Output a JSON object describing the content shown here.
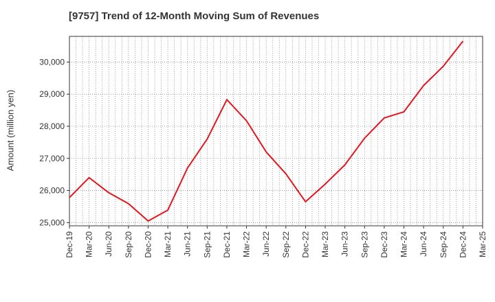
{
  "title": "[9757]  Trend of 12-Month Moving Sum of Revenues",
  "chart_data": {
    "type": "line",
    "title": "[9757]  Trend of 12-Month Moving Sum of Revenues",
    "xlabel": "",
    "ylabel": "Amount (million yen)",
    "ylim": [
      24900,
      30800
    ],
    "y_ticks": [
      25000,
      26000,
      27000,
      28000,
      29000,
      30000
    ],
    "y_tick_labels": [
      "25,000",
      "26,000",
      "27,000",
      "28,000",
      "29,000",
      "30,000"
    ],
    "categories": [
      "Dec-19",
      "Mar-20",
      "Jun-20",
      "Sep-20",
      "Dec-20",
      "Mar-21",
      "Jun-21",
      "Sep-21",
      "Dec-21",
      "Mar-22",
      "Jun-22",
      "Sep-22",
      "Dec-22",
      "Mar-23",
      "Jun-23",
      "Sep-23",
      "Dec-23",
      "Mar-24",
      "Jun-24",
      "Sep-24",
      "Dec-24",
      "Mar-25"
    ],
    "grid": true,
    "series": [
      {
        "name": "",
        "color": "#e8141c",
        "values": [
          25780,
          26400,
          25930,
          25590,
          25050,
          25390,
          26700,
          27600,
          28830,
          28170,
          27200,
          26520,
          25650,
          26200,
          26800,
          27630,
          28260,
          28450,
          29270,
          29870,
          30650,
          null
        ]
      }
    ]
  }
}
